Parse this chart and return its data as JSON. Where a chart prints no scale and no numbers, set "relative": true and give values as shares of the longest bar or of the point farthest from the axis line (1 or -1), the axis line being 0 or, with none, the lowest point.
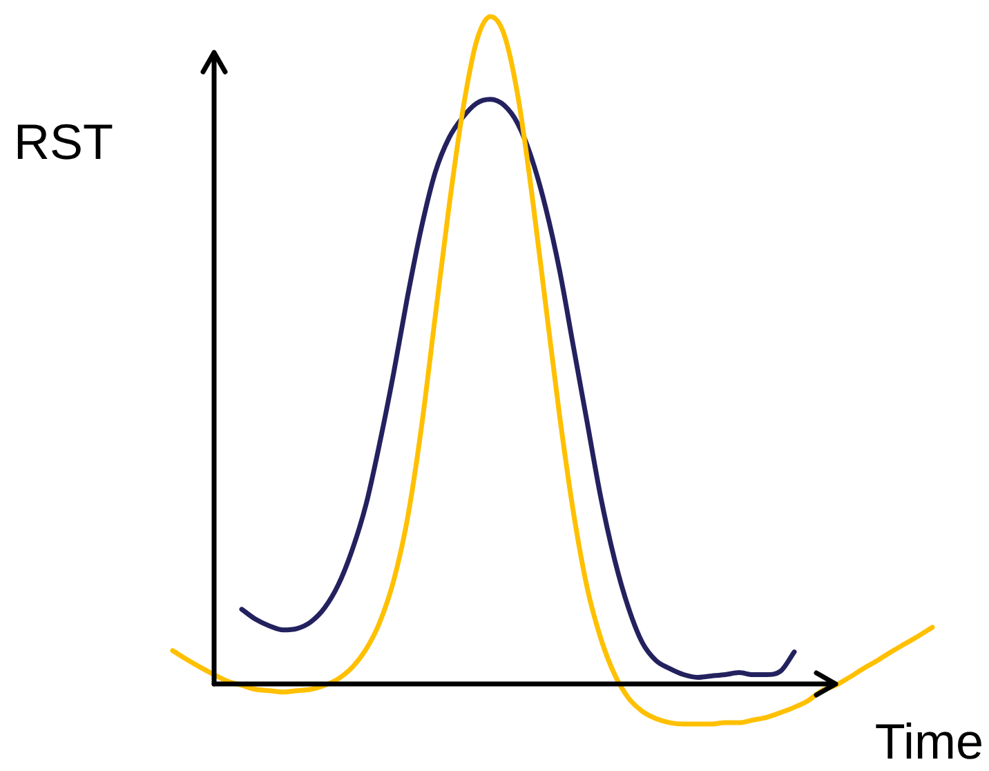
{
  "chart_data": {
    "type": "line",
    "relative": true,
    "xlabel": "Time",
    "ylabel": "RST",
    "marker": "none",
    "line_style": "solid",
    "categories": [
      null,
      null,
      null,
      null,
      null,
      null,
      null,
      null,
      null,
      null,
      null,
      null,
      null,
      null,
      null,
      null,
      null,
      null,
      null,
      null,
      null,
      null,
      null,
      null,
      null,
      null,
      null,
      null,
      null,
      null,
      null,
      null,
      null,
      null,
      null,
      null,
      null,
      null,
      null,
      null,
      null,
      null,
      null,
      null,
      null,
      null,
      null,
      null,
      null,
      null,
      null,
      null,
      null,
      null,
      null,
      null
    ],
    "series": [
      {
        "color": "#ffc000",
        "values": [
          0.05,
          0.037,
          0.025,
          0.014,
          0.004,
          -0.002,
          -0.008,
          -0.01,
          -0.012,
          -0.01,
          -0.008,
          -0.002,
          0.008,
          0.025,
          0.052,
          0.093,
          0.155,
          0.248,
          0.383,
          0.549,
          0.714,
          0.859,
          0.963,
          1,
          0.973,
          0.88,
          0.735,
          0.569,
          0.404,
          0.259,
          0.145,
          0.068,
          0.014,
          -0.021,
          -0.041,
          -0.052,
          -0.058,
          -0.06,
          -0.06,
          -0.06,
          -0.058,
          -0.058,
          -0.054,
          -0.05,
          -0.043,
          -0.035,
          -0.025,
          -0.01,
          -0.002,
          0.01,
          0.023,
          0.035,
          0.048,
          0.06,
          0.072,
          0.085
        ]
      },
      {
        "color": "#24215f",
        "values": [
          null,
          null,
          null,
          null,
          null,
          0.112,
          0.097,
          0.087,
          0.081,
          0.083,
          0.093,
          0.114,
          0.149,
          0.201,
          0.269,
          0.362,
          0.466,
          0.58,
          0.683,
          0.766,
          0.818,
          0.849,
          0.87,
          0.876,
          0.867,
          0.839,
          0.787,
          0.714,
          0.621,
          0.507,
          0.393,
          0.279,
          0.186,
          0.114,
          0.062,
          0.035,
          0.023,
          0.014,
          0.01,
          0.012,
          0.014,
          0.017,
          0.014,
          0.014,
          0.019,
          0.048,
          null,
          null,
          null,
          null,
          null,
          null,
          null,
          null,
          null,
          null
        ]
      }
    ]
  }
}
